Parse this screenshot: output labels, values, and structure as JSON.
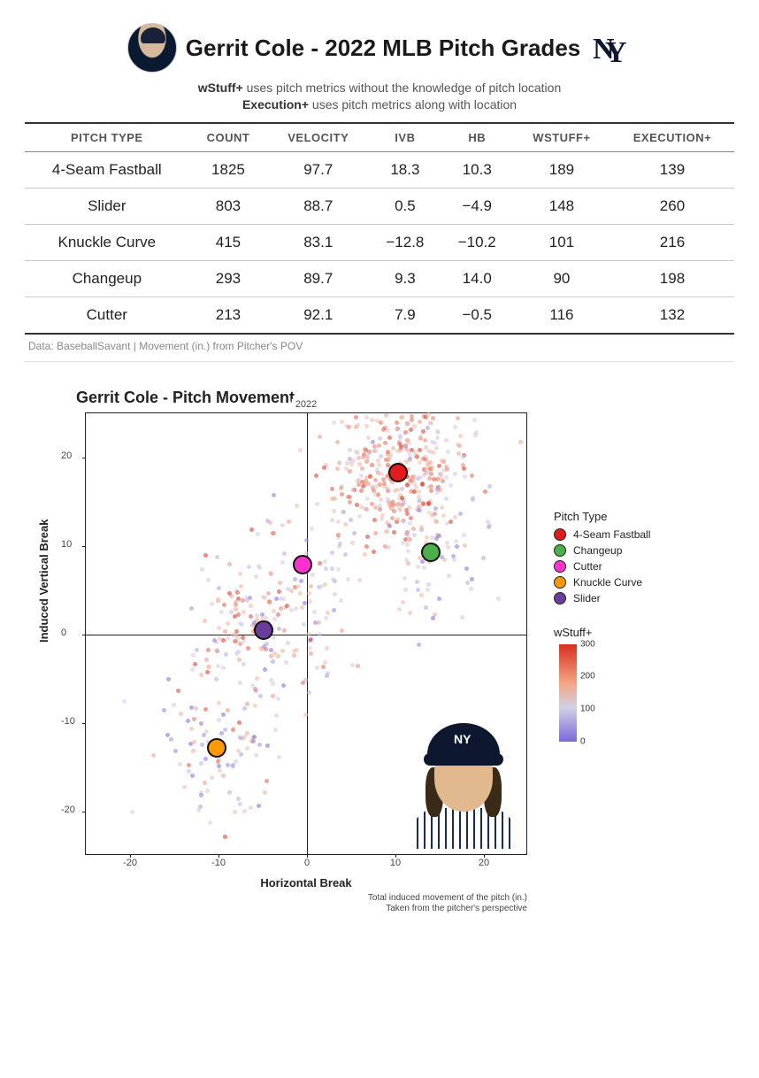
{
  "header": {
    "title": "Gerrit Cole - 2022 MLB Pitch Grades",
    "subtitle_line1_bold": "wStuff+",
    "subtitle_line1_rest": " uses pitch metrics without the knowledge of pitch location",
    "subtitle_line2_bold": "Execution+",
    "subtitle_line2_rest": " uses pitch metrics along with location"
  },
  "table": {
    "columns": [
      "PITCH TYPE",
      "COUNT",
      "VELOCITY",
      "IVB",
      "HB",
      "WSTUFF+",
      "EXECUTION+"
    ],
    "rows": [
      [
        "4-Seam Fastball",
        "1825",
        "97.7",
        "18.3",
        "10.3",
        "189",
        "139"
      ],
      [
        "Slider",
        "803",
        "88.7",
        "0.5",
        "−4.9",
        "148",
        "260"
      ],
      [
        "Knuckle Curve",
        "415",
        "83.1",
        "−12.8",
        "−10.2",
        "101",
        "216"
      ],
      [
        "Changeup",
        "293",
        "89.7",
        "9.3",
        "14.0",
        "90",
        "198"
      ],
      [
        "Cutter",
        "213",
        "92.1",
        "7.9",
        "−0.5",
        "116",
        "132"
      ]
    ],
    "footnote": "Data: BaseballSavant | Movement (in.) from Pitcher's POV"
  },
  "chart": {
    "title": "Gerrit Cole - Pitch Movement",
    "year_label": "2022",
    "xlabel": "Horizontal Break",
    "ylabel": "Induced Vertical Break",
    "caption_line1": "Total induced movement of the pitch (in.)",
    "caption_line2": "Taken from the pitcher's perspective",
    "xlim": [
      -25,
      25
    ],
    "ylim": [
      -25,
      25
    ],
    "xticks": [
      -20,
      -10,
      0,
      10,
      20
    ],
    "yticks": [
      -20,
      -10,
      0,
      10,
      20
    ],
    "scatter_dot_size": 5,
    "scatter_dot_opacity": 0.55,
    "centroid_border": "#111111",
    "legend_title": "Pitch Type",
    "colorbar_title": "wStuff+",
    "colorbar_ticks": [
      300,
      200,
      100,
      0
    ],
    "colorbar_gradient": [
      "#d7301f",
      "#f4a582",
      "#d1d1e6",
      "#7b68d8"
    ],
    "pitch_types": [
      {
        "name": "4-Seam Fastball",
        "color": "#e41a1c",
        "hb": 10.3,
        "ivb": 18.3,
        "count": 1825,
        "spread": 4.0,
        "wstuff_mean": 189,
        "wstuff_spread": 70
      },
      {
        "name": "Changeup",
        "color": "#4daf4a",
        "hb": 14.0,
        "ivb": 9.3,
        "count": 293,
        "spread": 3.6,
        "wstuff_mean": 90,
        "wstuff_spread": 80
      },
      {
        "name": "Cutter",
        "color": "#ff33cc",
        "hb": -0.5,
        "ivb": 7.9,
        "count": 213,
        "spread": 3.5,
        "wstuff_mean": 116,
        "wstuff_spread": 70
      },
      {
        "name": "Knuckle Curve",
        "color": "#ff9900",
        "hb": -10.2,
        "ivb": -12.8,
        "count": 415,
        "spread": 3.8,
        "wstuff_mean": 101,
        "wstuff_spread": 90
      },
      {
        "name": "Slider",
        "color": "#6a3d9a",
        "hb": -4.9,
        "ivb": 0.5,
        "count": 803,
        "spread": 4.2,
        "wstuff_mean": 148,
        "wstuff_spread": 90
      }
    ]
  }
}
